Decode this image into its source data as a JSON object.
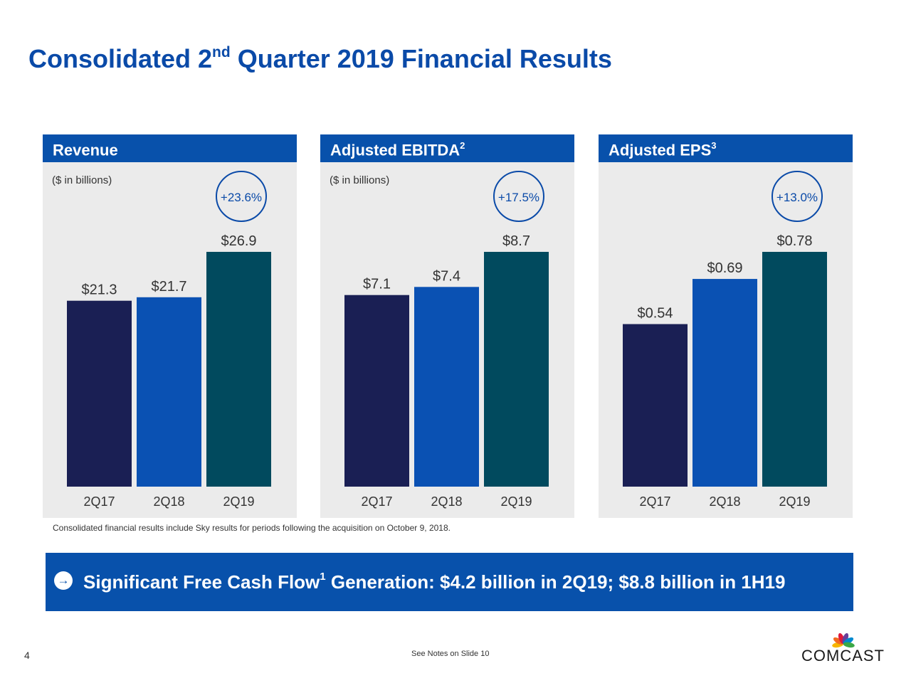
{
  "slide": {
    "title_main": "Consolidated 2",
    "title_sup": "nd",
    "title_rest": " Quarter 2019 Financial Results",
    "page_number": "4",
    "notes_ref": "See Notes on Slide 10"
  },
  "chart_data": [
    {
      "type": "bar",
      "title": "Revenue",
      "title_sup": "",
      "unit_note": "($ in billions)",
      "growth": "+23.6%",
      "categories": [
        "2Q17",
        "2Q18",
        "2Q19"
      ],
      "values": [
        21.3,
        21.7,
        26.9
      ],
      "value_labels": [
        "$21.3",
        "$21.7",
        "$26.9"
      ],
      "ylim": [
        0,
        26.9
      ],
      "colors": [
        "#1a1f54",
        "#0a51b3",
        "#014a5e"
      ]
    },
    {
      "type": "bar",
      "title": "Adjusted EBITDA",
      "title_sup": "2",
      "unit_note": "($ in billions)",
      "growth": "+17.5%",
      "categories": [
        "2Q17",
        "2Q18",
        "2Q19"
      ],
      "values": [
        7.1,
        7.4,
        8.7
      ],
      "value_labels": [
        "$7.1",
        "$7.4",
        "$8.7"
      ],
      "ylim": [
        0,
        8.7
      ],
      "colors": [
        "#1a1f54",
        "#0a51b3",
        "#014a5e"
      ]
    },
    {
      "type": "bar",
      "title": "Adjusted EPS",
      "title_sup": "3",
      "unit_note": "",
      "growth": "+13.0%",
      "categories": [
        "2Q17",
        "2Q18",
        "2Q19"
      ],
      "values": [
        0.54,
        0.69,
        0.78
      ],
      "value_labels": [
        "$0.54",
        "$0.69",
        "$0.78"
      ],
      "ylim": [
        0,
        0.78
      ],
      "colors": [
        "#1a1f54",
        "#0a51b3",
        "#014a5e"
      ]
    }
  ],
  "footnote": "Consolidated financial results include Sky results for periods following the acquisition on October 9, 2018.",
  "banner": {
    "icon": "arrow-right-icon",
    "text_main": "Significant Free Cash Flow",
    "text_sup": "1",
    "text_rest": " Generation: $4.2 billion in 2Q19; $8.8 billion in 1H19"
  },
  "logo": {
    "text": "COMCAST",
    "icon": "peacock-icon",
    "colors": [
      "#f7b500",
      "#f26a21",
      "#e0193a",
      "#6a3f98",
      "#0089cf",
      "#3ba847"
    ]
  }
}
